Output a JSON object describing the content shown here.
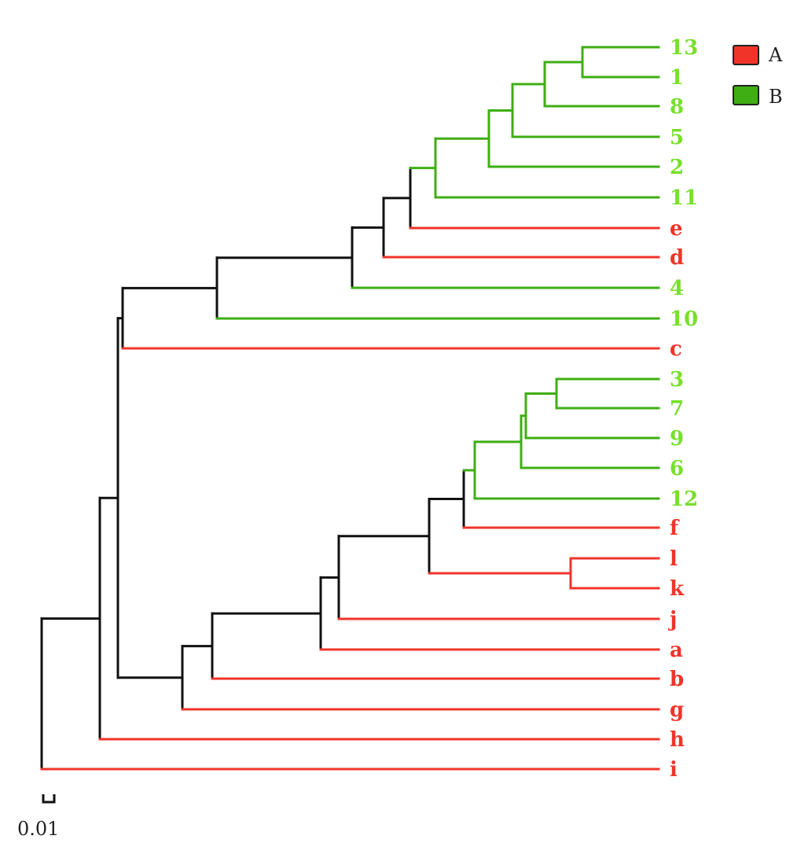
{
  "colors": {
    "A": "#f0342a",
    "B": "#3fae14",
    "B_label": "#77e02a",
    "internal": "#111111"
  },
  "legend": [
    {
      "key": "A",
      "label": "A",
      "color": "#f0342a"
    },
    {
      "key": "B",
      "label": "B",
      "color": "#3fae14"
    }
  ],
  "scale_bar": {
    "label": "0.01"
  },
  "leaves": [
    {
      "label": "13",
      "group": "B"
    },
    {
      "label": "1",
      "group": "B"
    },
    {
      "label": "8",
      "group": "B"
    },
    {
      "label": "5",
      "group": "B"
    },
    {
      "label": "2",
      "group": "B"
    },
    {
      "label": "11",
      "group": "B"
    },
    {
      "label": "e",
      "group": "A"
    },
    {
      "label": "d",
      "group": "A"
    },
    {
      "label": "4",
      "group": "B"
    },
    {
      "label": "10",
      "group": "B"
    },
    {
      "label": "c",
      "group": "A"
    },
    {
      "label": "3",
      "group": "B"
    },
    {
      "label": "7",
      "group": "B"
    },
    {
      "label": "9",
      "group": "B"
    },
    {
      "label": "6",
      "group": "B"
    },
    {
      "label": "12",
      "group": "B"
    },
    {
      "label": "f",
      "group": "A"
    },
    {
      "label": "l",
      "group": "A"
    },
    {
      "label": "k",
      "group": "A"
    },
    {
      "label": "j",
      "group": "A"
    },
    {
      "label": "a",
      "group": "A"
    },
    {
      "label": "b",
      "group": "A"
    },
    {
      "label": "g",
      "group": "A"
    },
    {
      "label": "h",
      "group": "A"
    },
    {
      "label": "i",
      "group": "A"
    }
  ]
}
